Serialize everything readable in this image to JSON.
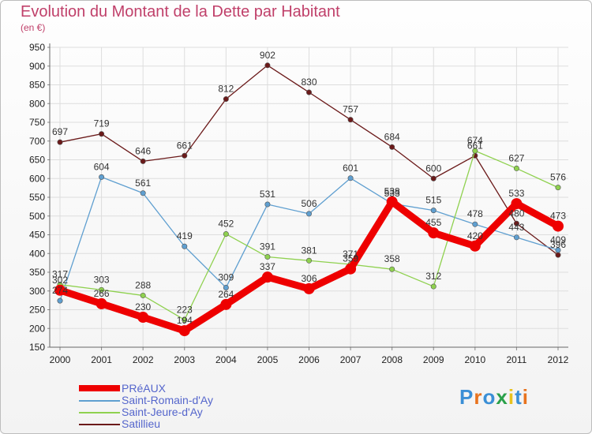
{
  "title": "Evolution du Montant de la Dette par Habitant",
  "subtitle": "(en €)",
  "logo_text": "Proxiti",
  "chart_data": {
    "type": "line",
    "title": "Evolution du Montant de la Dette par Habitant",
    "subtitle": "(en €)",
    "xlabel": "",
    "ylabel": "",
    "x": [
      "2000",
      "2001",
      "2002",
      "2003",
      "2004",
      "2005",
      "2006",
      "2007",
      "2008",
      "2009",
      "2010",
      "2011",
      "2012"
    ],
    "ylim": [
      150,
      950
    ],
    "yticks": [
      150,
      200,
      250,
      300,
      350,
      400,
      450,
      500,
      550,
      600,
      650,
      700,
      750,
      800,
      850,
      900,
      950
    ],
    "grid": true,
    "legend_position": "bottom-left",
    "series": [
      {
        "name": "PRéAUX",
        "color": "#ee0000",
        "values": [
          302,
          266,
          230,
          194,
          264,
          337,
          306,
          359,
          538,
          455,
          420,
          533,
          473
        ]
      },
      {
        "name": "Saint-Romain-d'Ay",
        "color": "#5f9fd0",
        "values": [
          274,
          604,
          561,
          419,
          309,
          531,
          506,
          601,
          533,
          515,
          478,
          443,
          409
        ]
      },
      {
        "name": "Saint-Jeure-d'Ay",
        "color": "#8fd14f",
        "values": [
          317,
          303,
          288,
          223,
          452,
          391,
          381,
          371,
          358,
          312,
          674,
          627,
          576
        ]
      },
      {
        "name": "Satillieu",
        "color": "#6b1a1a",
        "values": [
          697,
          719,
          646,
          661,
          812,
          902,
          830,
          757,
          684,
          600,
          661,
          480,
          396
        ]
      }
    ]
  }
}
